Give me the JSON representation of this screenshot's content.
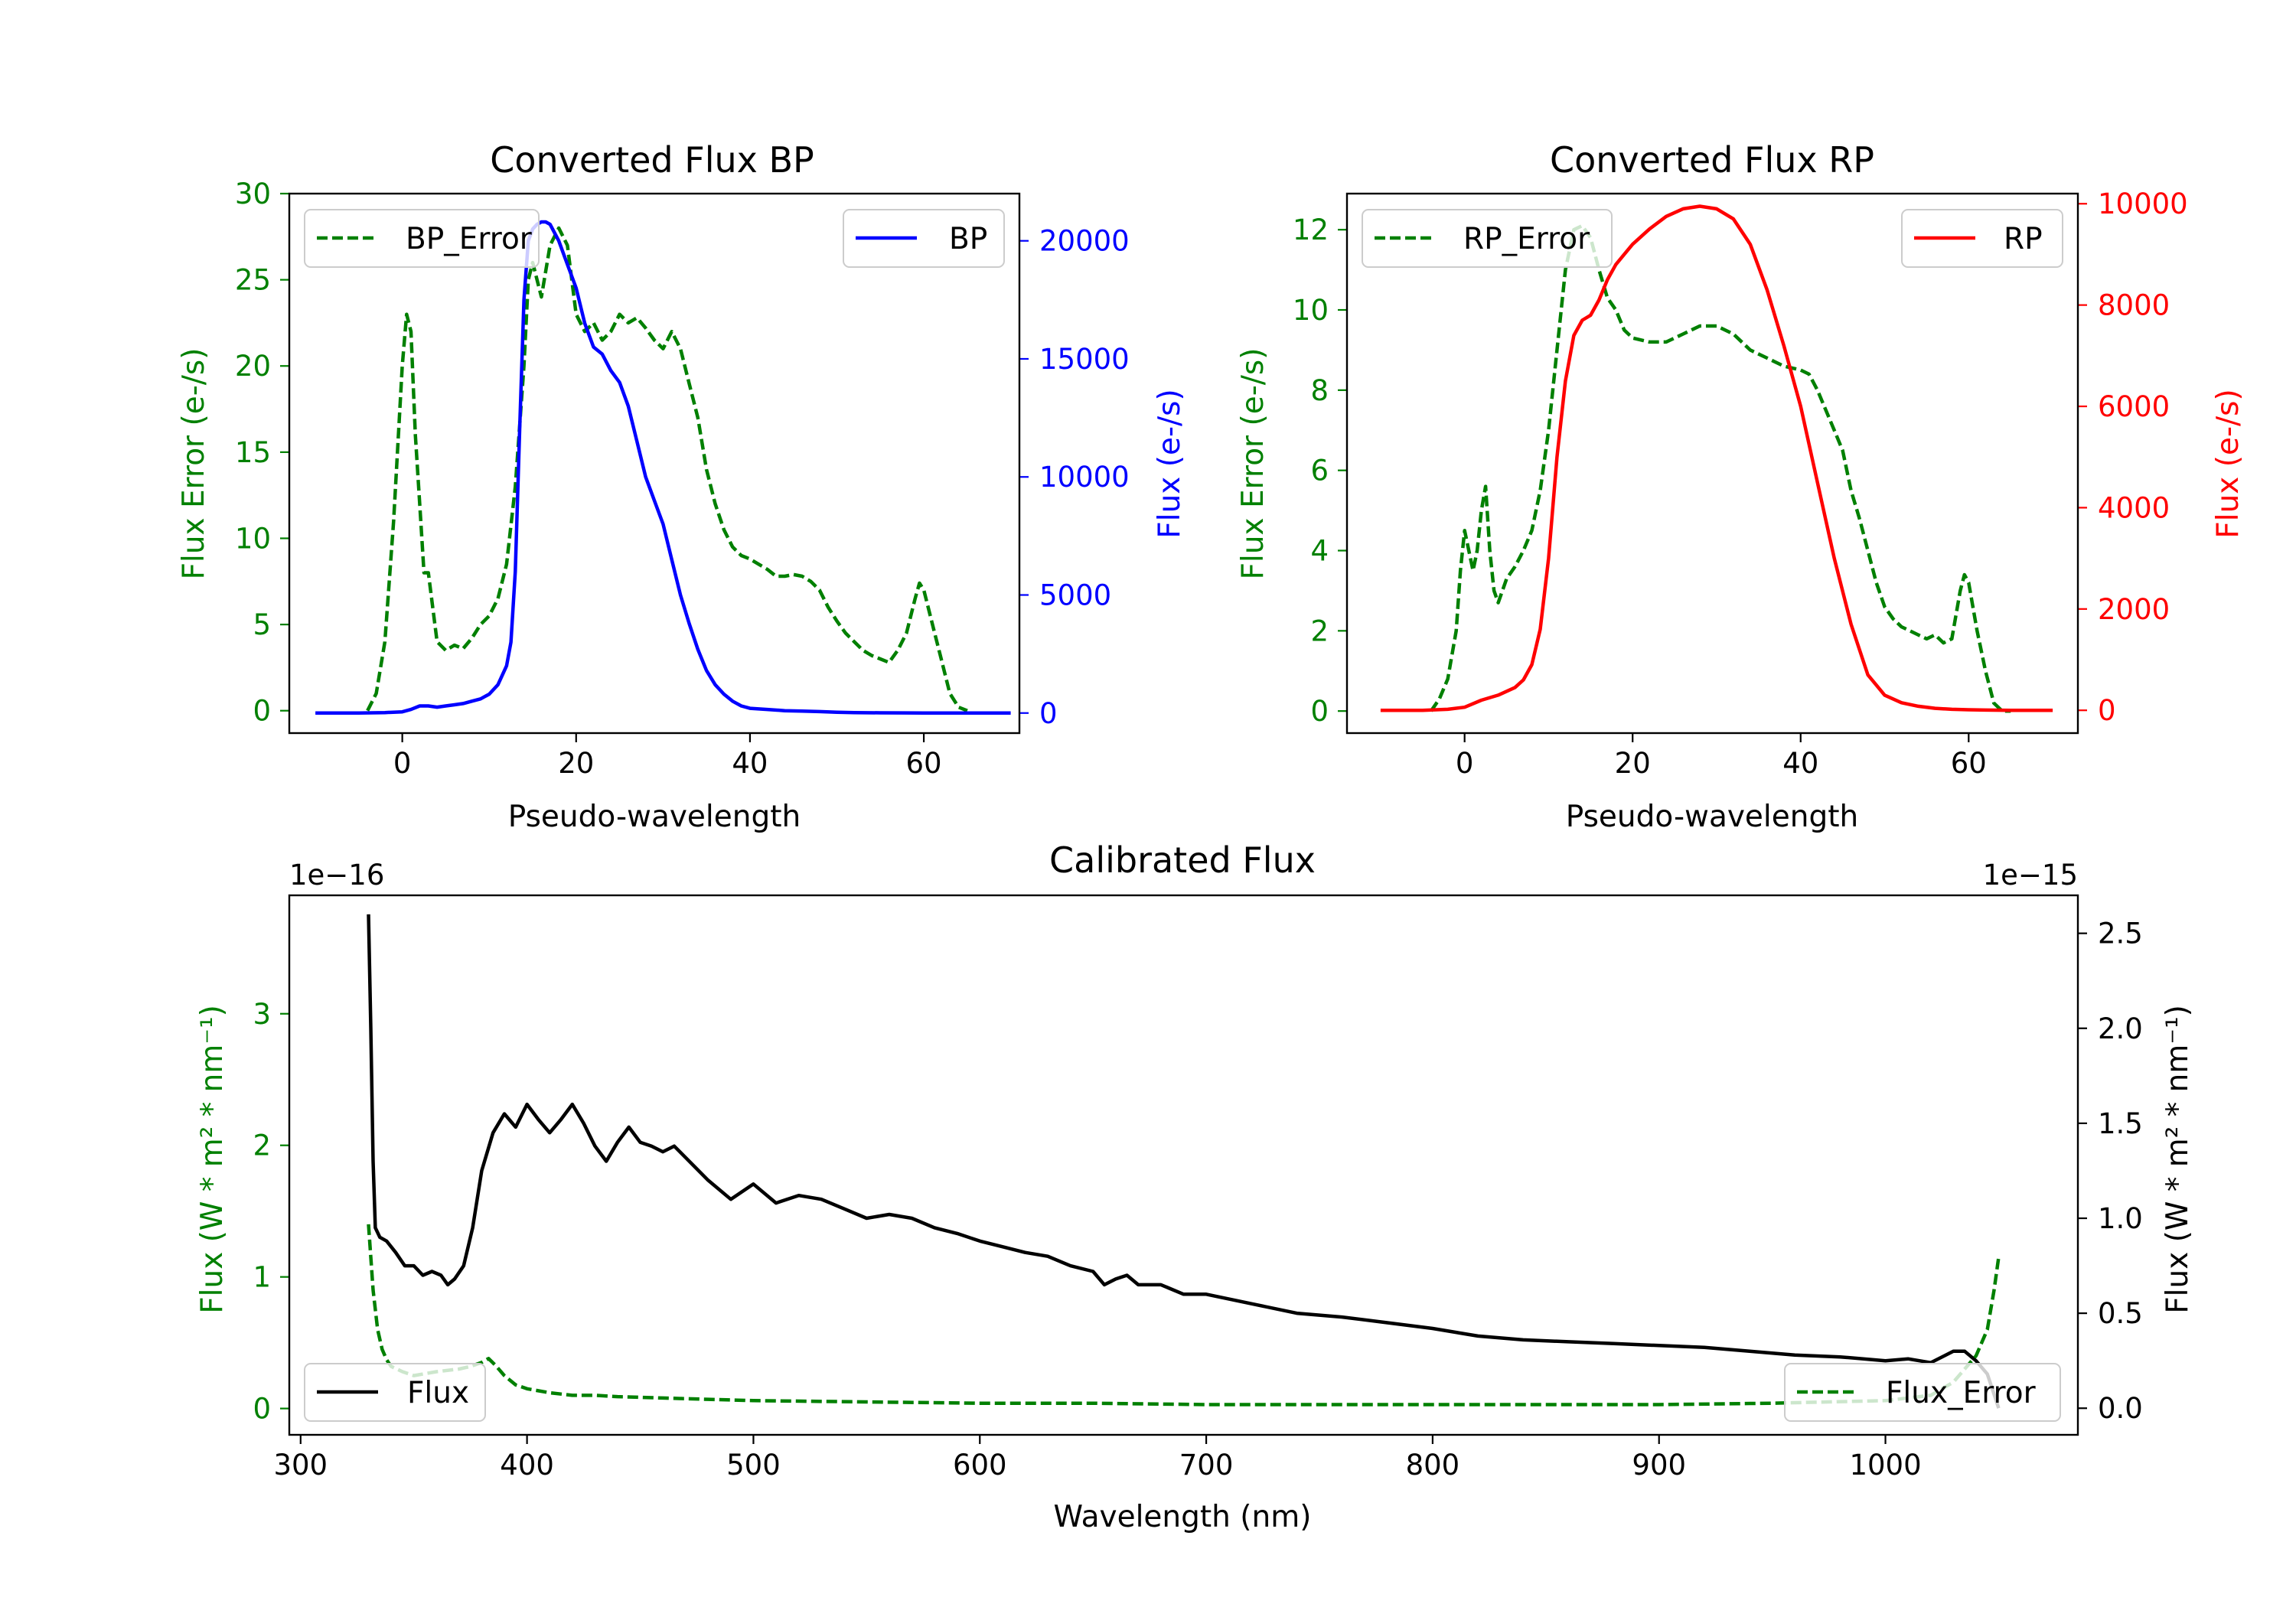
{
  "figure": {
    "colors": {
      "error": "#008000",
      "bp": "#0000ff",
      "rp": "#ff0000",
      "flux": "#000000"
    }
  },
  "chart_data": [
    {
      "type": "line",
      "title": "Converted Flux BP",
      "xlabel": "Pseudo-wavelength",
      "ylabel_left": "Flux Error (e-/s)",
      "ylabel_right": "Flux (e-/s)",
      "xlim": [
        -13,
        71
      ],
      "ylim_left": [
        -1.3,
        30
      ],
      "ylim_right": [
        -850,
        22000
      ],
      "xticks": [
        0,
        20,
        40,
        60
      ],
      "xtick_labels": [
        "0",
        "20",
        "40",
        "60"
      ],
      "yticks_left": [
        0,
        5,
        10,
        15,
        20,
        25,
        30
      ],
      "yticks_left_labels": [
        "0",
        "5",
        "10",
        "15",
        "20",
        "25",
        "30"
      ],
      "yticks_right": [
        0,
        5000,
        10000,
        15000,
        20000
      ],
      "yticks_right_labels": [
        "0",
        "5000",
        "10000",
        "15000",
        "20000"
      ],
      "legend_left": "BP_Error",
      "legend_right": "BP",
      "series": [
        {
          "name": "BP_Error",
          "axis": "left",
          "style": "dashed",
          "color": "#008000",
          "x": [
            -4,
            -3,
            -2,
            -1,
            0,
            0.5,
            1,
            1.5,
            2,
            2.5,
            3,
            3.5,
            4,
            5,
            6,
            7,
            8,
            9,
            10,
            11,
            12,
            13,
            14,
            14.5,
            15,
            16,
            17,
            18,
            19,
            20,
            21,
            22,
            23,
            24,
            25,
            26,
            27,
            28,
            29,
            30,
            31,
            32,
            33,
            34,
            35,
            36,
            37,
            38,
            39,
            40,
            41,
            42,
            43,
            44,
            45,
            46,
            47,
            48,
            49,
            50,
            51,
            52,
            53,
            54,
            55,
            56,
            57,
            58,
            59,
            59.5,
            60,
            61,
            62,
            63,
            64,
            65
          ],
          "y": [
            0,
            1,
            4,
            11,
            20,
            23,
            22,
            16,
            12,
            8,
            8,
            6,
            4,
            3.5,
            3.8,
            3.6,
            4.2,
            5,
            5.5,
            6.5,
            8.5,
            13,
            20,
            25,
            26,
            24,
            27,
            28,
            27,
            23,
            22,
            22.5,
            21.5,
            22,
            23,
            22.5,
            22.8,
            22.2,
            21.5,
            21,
            22,
            21,
            19,
            17,
            14,
            12,
            10.5,
            9.5,
            9,
            8.8,
            8.5,
            8.2,
            7.8,
            7.8,
            7.9,
            7.8,
            7.5,
            7,
            6,
            5.2,
            4.5,
            4,
            3.5,
            3.2,
            3,
            2.8,
            3.5,
            4.5,
            6.5,
            7.4,
            7,
            5,
            3,
            1,
            0.2,
            0
          ]
        },
        {
          "name": "BP",
          "axis": "right",
          "style": "solid",
          "color": "#0000ff",
          "x": [
            -10,
            -5,
            -2,
            0,
            1,
            2,
            3,
            4,
            5,
            6,
            7,
            8,
            9,
            10,
            11,
            12,
            12.5,
            13,
            13.5,
            14,
            14.5,
            15,
            15.5,
            16,
            16.5,
            17,
            18,
            19,
            20,
            21,
            22,
            23,
            24,
            25,
            26,
            27,
            28,
            29,
            30,
            31,
            32,
            33,
            34,
            35,
            36,
            37,
            38,
            39,
            40,
            42,
            44,
            46,
            48,
            50,
            52,
            55,
            58,
            60,
            62,
            65,
            70
          ],
          "y": [
            0,
            0,
            20,
            50,
            150,
            300,
            300,
            250,
            300,
            350,
            400,
            500,
            600,
            800,
            1200,
            2000,
            3000,
            6000,
            12000,
            17500,
            20000,
            20500,
            20700,
            20800,
            20800,
            20700,
            20000,
            19000,
            18000,
            16500,
            15500,
            15200,
            14500,
            14000,
            13000,
            11500,
            10000,
            9000,
            8000,
            6500,
            5000,
            3800,
            2700,
            1800,
            1200,
            800,
            500,
            300,
            200,
            150,
            100,
            80,
            60,
            30,
            20,
            10,
            5,
            3,
            2,
            0,
            0
          ]
        }
      ]
    },
    {
      "type": "line",
      "title": "Converted Flux RP",
      "xlabel": "Pseudo-wavelength",
      "ylabel_left": "Flux Error (e-/s)",
      "ylabel_right": "Flux (e-/s)",
      "xlim": [
        -14,
        73
      ],
      "ylim_left": [
        -0.55,
        12.9
      ],
      "ylim_right": [
        -450,
        10200
      ],
      "xticks": [
        0,
        20,
        40,
        60
      ],
      "xtick_labels": [
        "0",
        "20",
        "40",
        "60"
      ],
      "yticks_left": [
        0,
        2,
        4,
        6,
        8,
        10,
        12
      ],
      "yticks_left_labels": [
        "0",
        "2",
        "4",
        "6",
        "8",
        "10",
        "12"
      ],
      "yticks_right": [
        0,
        2000,
        4000,
        6000,
        8000,
        10000
      ],
      "yticks_right_labels": [
        "0",
        "2000",
        "4000",
        "6000",
        "8000",
        "10000"
      ],
      "legend_left": "RP_Error",
      "legend_right": "RP",
      "series": [
        {
          "name": "RP_Error",
          "axis": "left",
          "style": "dashed",
          "color": "#008000",
          "x": [
            -4,
            -3,
            -2,
            -1,
            -0.5,
            0,
            0.5,
            1,
            1.5,
            2,
            2.5,
            3,
            3.5,
            4,
            5,
            6,
            7,
            8,
            9,
            10,
            11,
            12,
            13,
            14,
            15,
            16,
            17,
            18,
            19,
            20,
            22,
            24,
            26,
            28,
            30,
            32,
            34,
            36,
            38,
            40,
            41,
            42,
            43,
            44,
            45,
            46,
            47,
            48,
            49,
            50,
            51,
            52,
            53,
            54,
            55,
            56,
            57,
            58,
            59,
            59.5,
            60,
            61,
            62,
            63,
            64,
            65
          ],
          "y": [
            0,
            0.3,
            0.8,
            2,
            3.5,
            4.5,
            4,
            3.5,
            4,
            5,
            5.6,
            4,
            3,
            2.7,
            3.3,
            3.6,
            4,
            4.5,
            5.5,
            7,
            9,
            11,
            12,
            12.1,
            11.8,
            11,
            10.3,
            10,
            9.5,
            9.3,
            9.2,
            9.2,
            9.4,
            9.6,
            9.6,
            9.4,
            9,
            8.8,
            8.6,
            8.5,
            8.4,
            8,
            7.5,
            7,
            6.5,
            5.5,
            4.8,
            4,
            3.2,
            2.6,
            2.3,
            2.1,
            2,
            1.9,
            1.8,
            1.9,
            1.7,
            1.8,
            3,
            3.4,
            3.2,
            2,
            1,
            0.2,
            0,
            0
          ]
        },
        {
          "name": "RP",
          "axis": "right",
          "style": "solid",
          "color": "#ff0000",
          "x": [
            -10,
            -5,
            -2,
            0,
            2,
            4,
            6,
            7,
            8,
            9,
            10,
            11,
            12,
            13,
            14,
            15,
            16,
            17,
            18,
            19,
            20,
            22,
            24,
            26,
            28,
            30,
            32,
            34,
            36,
            38,
            40,
            42,
            44,
            46,
            48,
            50,
            52,
            54,
            56,
            58,
            60,
            62,
            65,
            70
          ],
          "y": [
            0,
            0,
            20,
            60,
            200,
            300,
            450,
            600,
            900,
            1600,
            3000,
            5000,
            6500,
            7400,
            7700,
            7800,
            8100,
            8500,
            8800,
            9000,
            9200,
            9500,
            9750,
            9900,
            9950,
            9900,
            9700,
            9200,
            8300,
            7200,
            6000,
            4500,
            3000,
            1700,
            700,
            300,
            150,
            80,
            40,
            20,
            10,
            5,
            0,
            0
          ]
        }
      ]
    },
    {
      "type": "line",
      "title": "Calibrated Flux",
      "xlabel": "Wavelength (nm)",
      "ylabel_left": "Flux (W * m² * nm⁻¹)",
      "ylabel_right": "Flux (W * m² * nm⁻¹)",
      "offset_left": "1e−16",
      "offset_right": "1e−15",
      "xlim": [
        295,
        1085
      ],
      "ylim_left": [
        -0.2,
        3.9
      ],
      "ylim_right": [
        -0.14,
        2.7
      ],
      "xticks": [
        300,
        400,
        500,
        600,
        700,
        800,
        900,
        1000
      ],
      "xtick_labels": [
        "300",
        "400",
        "500",
        "600",
        "700",
        "800",
        "900",
        "1000"
      ],
      "yticks_left": [
        0,
        1,
        2,
        3
      ],
      "yticks_left_labels": [
        "0",
        "1",
        "2",
        "3"
      ],
      "yticks_right": [
        0.0,
        0.5,
        1.0,
        1.5,
        2.0,
        2.5
      ],
      "yticks_right_labels": [
        "0.0",
        "0.5",
        "1.0",
        "1.5",
        "2.0",
        "2.5"
      ],
      "legend_left": "Flux",
      "legend_right": "Flux_Error",
      "series": [
        {
          "name": "Flux",
          "axis": "right",
          "style": "solid",
          "color": "#000000",
          "x": [
            330,
            331,
            332,
            333,
            335,
            338,
            342,
            346,
            350,
            354,
            358,
            362,
            365,
            368,
            372,
            376,
            380,
            385,
            390,
            395,
            400,
            405,
            410,
            415,
            420,
            425,
            430,
            435,
            440,
            445,
            450,
            455,
            460,
            465,
            470,
            480,
            490,
            500,
            510,
            520,
            530,
            540,
            550,
            560,
            570,
            580,
            590,
            600,
            610,
            620,
            630,
            640,
            650,
            655,
            660,
            665,
            670,
            680,
            690,
            700,
            720,
            740,
            760,
            780,
            800,
            820,
            840,
            860,
            880,
            900,
            920,
            940,
            960,
            980,
            1000,
            1010,
            1020,
            1030,
            1035,
            1040,
            1045,
            1050
          ],
          "y": [
            2.6,
            2.0,
            1.3,
            0.95,
            0.9,
            0.88,
            0.82,
            0.75,
            0.75,
            0.7,
            0.72,
            0.7,
            0.65,
            0.68,
            0.75,
            0.95,
            1.25,
            1.45,
            1.55,
            1.48,
            1.6,
            1.52,
            1.45,
            1.52,
            1.6,
            1.5,
            1.38,
            1.3,
            1.4,
            1.48,
            1.4,
            1.38,
            1.35,
            1.38,
            1.32,
            1.2,
            1.1,
            1.18,
            1.08,
            1.12,
            1.1,
            1.05,
            1.0,
            1.02,
            1.0,
            0.95,
            0.92,
            0.88,
            0.85,
            0.82,
            0.8,
            0.75,
            0.72,
            0.65,
            0.68,
            0.7,
            0.65,
            0.65,
            0.6,
            0.6,
            0.55,
            0.5,
            0.48,
            0.45,
            0.42,
            0.38,
            0.36,
            0.35,
            0.34,
            0.33,
            0.32,
            0.3,
            0.28,
            0.27,
            0.25,
            0.26,
            0.24,
            0.3,
            0.3,
            0.25,
            0.18,
            0.0
          ]
        },
        {
          "name": "Flux_Error",
          "axis": "left",
          "style": "dashed",
          "color": "#008000",
          "x": [
            330,
            332,
            334,
            336,
            338,
            340,
            345,
            350,
            360,
            370,
            375,
            380,
            383,
            386,
            390,
            395,
            400,
            410,
            420,
            430,
            440,
            460,
            480,
            500,
            550,
            600,
            650,
            700,
            800,
            900,
            950,
            1000,
            1020,
            1030,
            1040,
            1045,
            1048,
            1050
          ],
          "y": [
            1.4,
            0.9,
            0.6,
            0.45,
            0.37,
            0.32,
            0.28,
            0.25,
            0.28,
            0.3,
            0.32,
            0.35,
            0.38,
            0.33,
            0.25,
            0.18,
            0.15,
            0.12,
            0.1,
            0.1,
            0.09,
            0.08,
            0.07,
            0.06,
            0.05,
            0.04,
            0.04,
            0.03,
            0.03,
            0.03,
            0.04,
            0.06,
            0.1,
            0.2,
            0.4,
            0.6,
            0.9,
            1.15
          ]
        }
      ]
    }
  ]
}
